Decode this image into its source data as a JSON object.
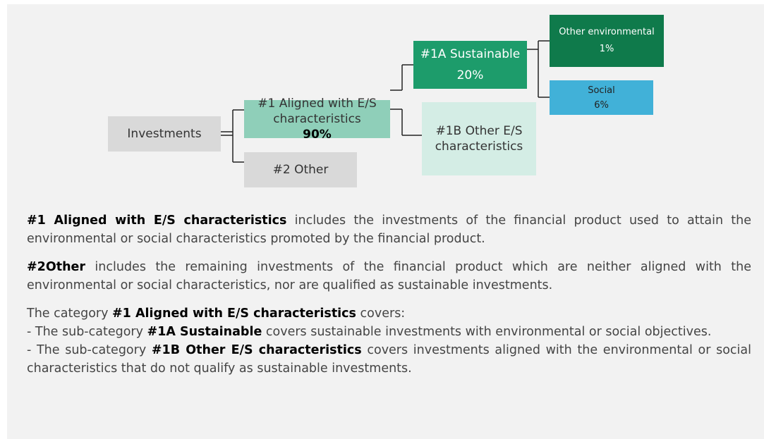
{
  "nodes": [
    {
      "label": "Investments"
    },
    {
      "label": "#1 Aligned with E/S characteristics",
      "value": "90%"
    },
    {
      "label": "#2 Other"
    },
    {
      "label": "#1A Sustainable",
      "value": "20%"
    },
    {
      "label": "#1B Other E/S characteristics"
    },
    {
      "label": "Other environmental",
      "value": "1%"
    },
    {
      "label": "Social",
      "value": "6%"
    }
  ],
  "paragraphs": [
    [
      {
        "text": "#1 Aligned with E/S characteristics",
        "bold": true
      },
      {
        "text": " includes the investments of the financial product used to attain the environmental or social characteristics promoted by the financial product.",
        "bold": false
      }
    ],
    [
      {
        "text": "#2Other",
        "bold": true
      },
      {
        "text": " includes the remaining investments of the financial product which are neither aligned with the environmental or social characteristics, nor are qualified as sustainable investments.",
        "bold": false
      }
    ],
    [
      {
        "text": "The category ",
        "bold": false
      },
      {
        "text": "#1 Aligned with E/S characteristics",
        "bold": true
      },
      {
        "text": " covers:",
        "bold": false
      }
    ],
    [
      {
        "text": "- The sub-category ",
        "bold": false
      },
      {
        "text": "#1A Sustainable",
        "bold": true
      },
      {
        "text": " covers sustainable investments with environmental or social objectives.",
        "bold": false
      }
    ],
    [
      {
        "text": "- The sub-category ",
        "bold": false
      },
      {
        "text": "#1B Other E/S characteristics",
        "bold": true
      },
      {
        "text": " covers investments aligned with the environmental or social characteristics that do not qualify as sustainable investments.",
        "bold": false
      }
    ]
  ]
}
